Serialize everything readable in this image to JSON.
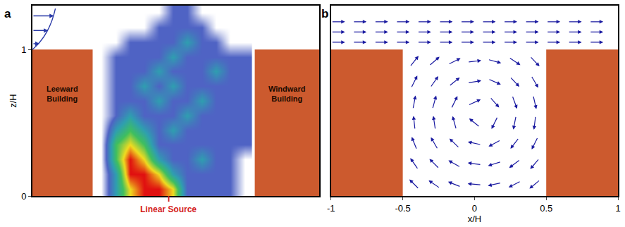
{
  "chart_data": [
    {
      "type": "concentration_field",
      "panel": "a",
      "xlim": [
        -1,
        1
      ],
      "ylim": [
        0,
        1.3
      ],
      "yticks": [
        0,
        1
      ],
      "y_label": "z/H",
      "tick_labels": "y",
      "buildings": [
        {
          "label": "Leeward Building",
          "x": [
            -1,
            -0.58
          ],
          "z": [
            0,
            1
          ],
          "color": "#cc5a2e"
        },
        {
          "label": "Windward Building",
          "x": [
            0.55,
            1
          ],
          "z": [
            0,
            1
          ],
          "color": "#cc5a2e"
        }
      ],
      "source": {
        "label": "Linear Source",
        "x": -0.05,
        "color": "#d42020"
      },
      "concentration": {
        "x": [
          -0.52,
          -0.42,
          -0.32,
          -0.22,
          -0.12,
          -0.02,
          0.08,
          0.18,
          0.28,
          0.38,
          0.48
        ],
        "z": [
          0.05,
          0.15,
          0.25,
          0.35,
          0.45,
          0.55,
          0.65,
          0.75,
          0.85,
          0.95,
          1.05,
          1.15,
          1.25
        ],
        "values": [
          [
            0,
            2,
            4,
            5,
            5,
            4,
            1,
            1,
            1,
            1,
            0
          ],
          [
            0,
            2,
            5,
            5,
            4,
            2,
            1,
            1,
            1,
            1,
            0
          ],
          [
            0,
            3,
            5,
            4,
            2,
            1,
            1,
            2,
            1,
            1,
            0
          ],
          [
            0,
            3,
            4,
            3,
            1,
            1,
            1,
            1,
            1,
            1,
            1
          ],
          [
            0,
            2,
            3,
            2,
            1,
            2,
            1,
            1,
            1,
            1,
            1
          ],
          [
            0,
            1,
            2,
            1,
            1,
            1,
            2,
            1,
            1,
            1,
            1
          ],
          [
            0,
            1,
            1,
            1,
            2,
            1,
            1,
            2,
            1,
            1,
            1
          ],
          [
            0,
            1,
            1,
            2,
            1,
            2,
            1,
            1,
            1,
            1,
            1
          ],
          [
            0,
            1,
            1,
            1,
            2,
            1,
            1,
            1,
            2,
            1,
            1
          ],
          [
            0,
            1,
            1,
            1,
            1,
            2,
            1,
            1,
            1,
            1,
            1
          ],
          [
            0,
            0,
            1,
            1,
            1,
            1,
            2,
            1,
            1,
            0,
            0
          ],
          [
            0,
            0,
            0,
            0,
            1,
            1,
            1,
            1,
            0,
            0,
            0
          ],
          [
            0,
            0,
            0,
            0,
            0,
            1,
            1,
            0,
            0,
            0,
            0
          ]
        ],
        "zlim": [
          0,
          5
        ]
      }
    },
    {
      "type": "vector_field",
      "panel": "b",
      "xlim": [
        -1,
        1
      ],
      "ylim": [
        0,
        1.3
      ],
      "xticks": [
        -1,
        -0.5,
        0,
        0.5,
        1
      ],
      "x_label": "x/H",
      "tick_labels": "x",
      "color": "#1a1aa0",
      "buildings": [
        {
          "x": [
            -1,
            -0.5
          ],
          "z": [
            0,
            1
          ],
          "color": "#cc5a2e"
        },
        {
          "x": [
            0.5,
            1
          ],
          "z": [
            0,
            1
          ],
          "color": "#cc5a2e"
        }
      ],
      "vectors": [
        {
          "x": [
            -0.42,
            -0.28,
            -0.14,
            0,
            0.14,
            0.28,
            0.42
          ],
          "z": [
            0.08,
            0.22,
            0.36,
            0.5,
            0.64,
            0.78,
            0.92
          ],
          "u": [
            [
              -0.71,
              -0.83,
              -0.93,
              -1.0,
              -0.98,
              -0.89,
              -0.78
            ],
            [
              -0.58,
              -0.72,
              -0.88,
              -0.99,
              -0.96,
              -0.81,
              -0.66
            ],
            [
              -0.38,
              -0.51,
              -0.73,
              -0.98,
              -0.88,
              -0.62,
              -0.45
            ],
            [
              -0.11,
              -0.15,
              -0.27,
              -0.78,
              -0.45,
              -0.2,
              -0.13
            ],
            [
              0.19,
              0.27,
              0.45,
              0.91,
              0.67,
              0.35,
              0.23
            ],
            [
              0.45,
              0.58,
              0.79,
              0.99,
              0.92,
              0.69,
              0.52
            ],
            [
              0.63,
              0.76,
              0.9,
              0.99,
              0.97,
              0.84,
              0.7
            ]
          ],
          "w": [
            [
              0.7,
              0.56,
              0.36,
              0.09,
              -0.21,
              -0.45,
              -0.63
            ],
            [
              0.81,
              0.7,
              0.48,
              0.12,
              -0.29,
              -0.59,
              -0.76
            ],
            [
              0.92,
              0.86,
              0.69,
              0.21,
              -0.47,
              -0.78,
              -0.89
            ],
            [
              0.99,
              0.99,
              0.96,
              0.62,
              -0.89,
              -0.98,
              -0.99
            ],
            [
              0.98,
              0.96,
              0.89,
              0.41,
              -0.74,
              -0.94,
              -0.97
            ],
            [
              0.89,
              0.81,
              0.62,
              0.17,
              -0.4,
              -0.72,
              -0.86
            ],
            [
              0.78,
              0.65,
              0.44,
              0.11,
              -0.26,
              -0.54,
              -0.72
            ]
          ]
        },
        {
          "x": [
            -0.95,
            -0.8,
            -0.65,
            -0.5,
            -0.35,
            -0.2,
            -0.05,
            0.1,
            0.25,
            0.4,
            0.55,
            0.7,
            0.85
          ],
          "z": [
            1.05,
            1.12,
            1.19
          ],
          "u": [
            [
              1,
              1,
              1,
              1,
              1,
              1,
              1,
              1,
              1,
              1,
              1,
              1,
              1
            ],
            [
              1,
              1,
              1,
              1,
              1,
              1,
              1,
              1,
              1,
              1,
              1,
              1,
              1
            ],
            [
              1,
              1,
              1,
              1,
              1,
              1,
              1,
              1,
              1,
              1,
              1,
              1,
              1
            ]
          ],
          "w": [
            [
              0,
              0,
              0,
              0,
              0,
              0,
              0,
              0,
              0,
              0,
              0,
              0,
              0
            ],
            [
              0,
              0,
              0,
              0,
              0,
              0,
              0,
              0,
              0,
              0,
              0,
              0,
              0
            ],
            [
              0,
              0,
              0,
              0,
              0,
              0,
              0,
              0,
              0,
              0,
              0,
              0,
              0
            ]
          ]
        }
      ]
    }
  ]
}
